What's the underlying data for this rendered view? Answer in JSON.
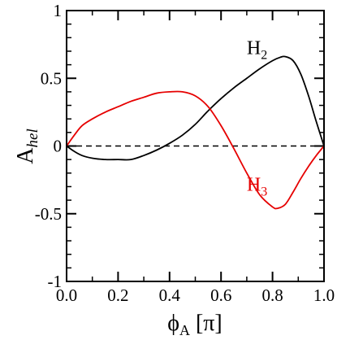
{
  "chart_data": {
    "type": "line",
    "title": "",
    "xlabel": {
      "main": "ϕ",
      "sub": "A",
      "rest": " [π]"
    },
    "ylabel": {
      "main": "A",
      "sub": "hel"
    },
    "xlim": [
      0,
      1
    ],
    "ylim": [
      -1,
      1
    ],
    "xticks": [
      0.0,
      0.2,
      0.4,
      0.6,
      0.8,
      1.0
    ],
    "xtick_labels": [
      "0.0",
      "0.2",
      "0.4",
      "0.6",
      "0.8",
      "1.0"
    ],
    "yticks": [
      -1,
      -0.5,
      0,
      0.5,
      1
    ],
    "ytick_labels": [
      "-1",
      "-0.5",
      "0",
      "0.5",
      "1"
    ],
    "grid": false,
    "zero_line": {
      "y": 0,
      "style": "dashed",
      "color": "#000000"
    },
    "series": [
      {
        "name": "H2",
        "label_main": "H",
        "label_sub": "2",
        "color": "#000000",
        "x": [
          0.0,
          0.03,
          0.06,
          0.1,
          0.15,
          0.2,
          0.25,
          0.3,
          0.35,
          0.4,
          0.45,
          0.5,
          0.55,
          0.6,
          0.65,
          0.7,
          0.75,
          0.8,
          0.83,
          0.85,
          0.88,
          0.91,
          0.94,
          0.97,
          1.0
        ],
        "y": [
          0.0,
          -0.04,
          -0.07,
          -0.09,
          -0.1,
          -0.1,
          -0.1,
          -0.07,
          -0.03,
          0.02,
          0.08,
          0.16,
          0.26,
          0.35,
          0.43,
          0.5,
          0.57,
          0.63,
          0.655,
          0.66,
          0.63,
          0.53,
          0.37,
          0.18,
          0.0
        ]
      },
      {
        "name": "H3",
        "label_main": "H",
        "label_sub": "3",
        "color": "#e60000",
        "x": [
          0.0,
          0.03,
          0.06,
          0.1,
          0.15,
          0.2,
          0.25,
          0.3,
          0.35,
          0.4,
          0.45,
          0.5,
          0.55,
          0.6,
          0.65,
          0.7,
          0.75,
          0.8,
          0.82,
          0.85,
          0.88,
          0.91,
          0.94,
          0.97,
          1.0
        ],
        "y": [
          0.0,
          0.08,
          0.15,
          0.2,
          0.25,
          0.29,
          0.33,
          0.36,
          0.39,
          0.4,
          0.4,
          0.37,
          0.29,
          0.15,
          -0.02,
          -0.2,
          -0.36,
          -0.45,
          -0.46,
          -0.43,
          -0.34,
          -0.24,
          -0.15,
          -0.07,
          0.0
        ]
      }
    ],
    "annotations": [
      {
        "series": "H2",
        "x": 0.7,
        "y": 0.68
      },
      {
        "series": "H3",
        "x": 0.7,
        "y": -0.33
      }
    ]
  }
}
